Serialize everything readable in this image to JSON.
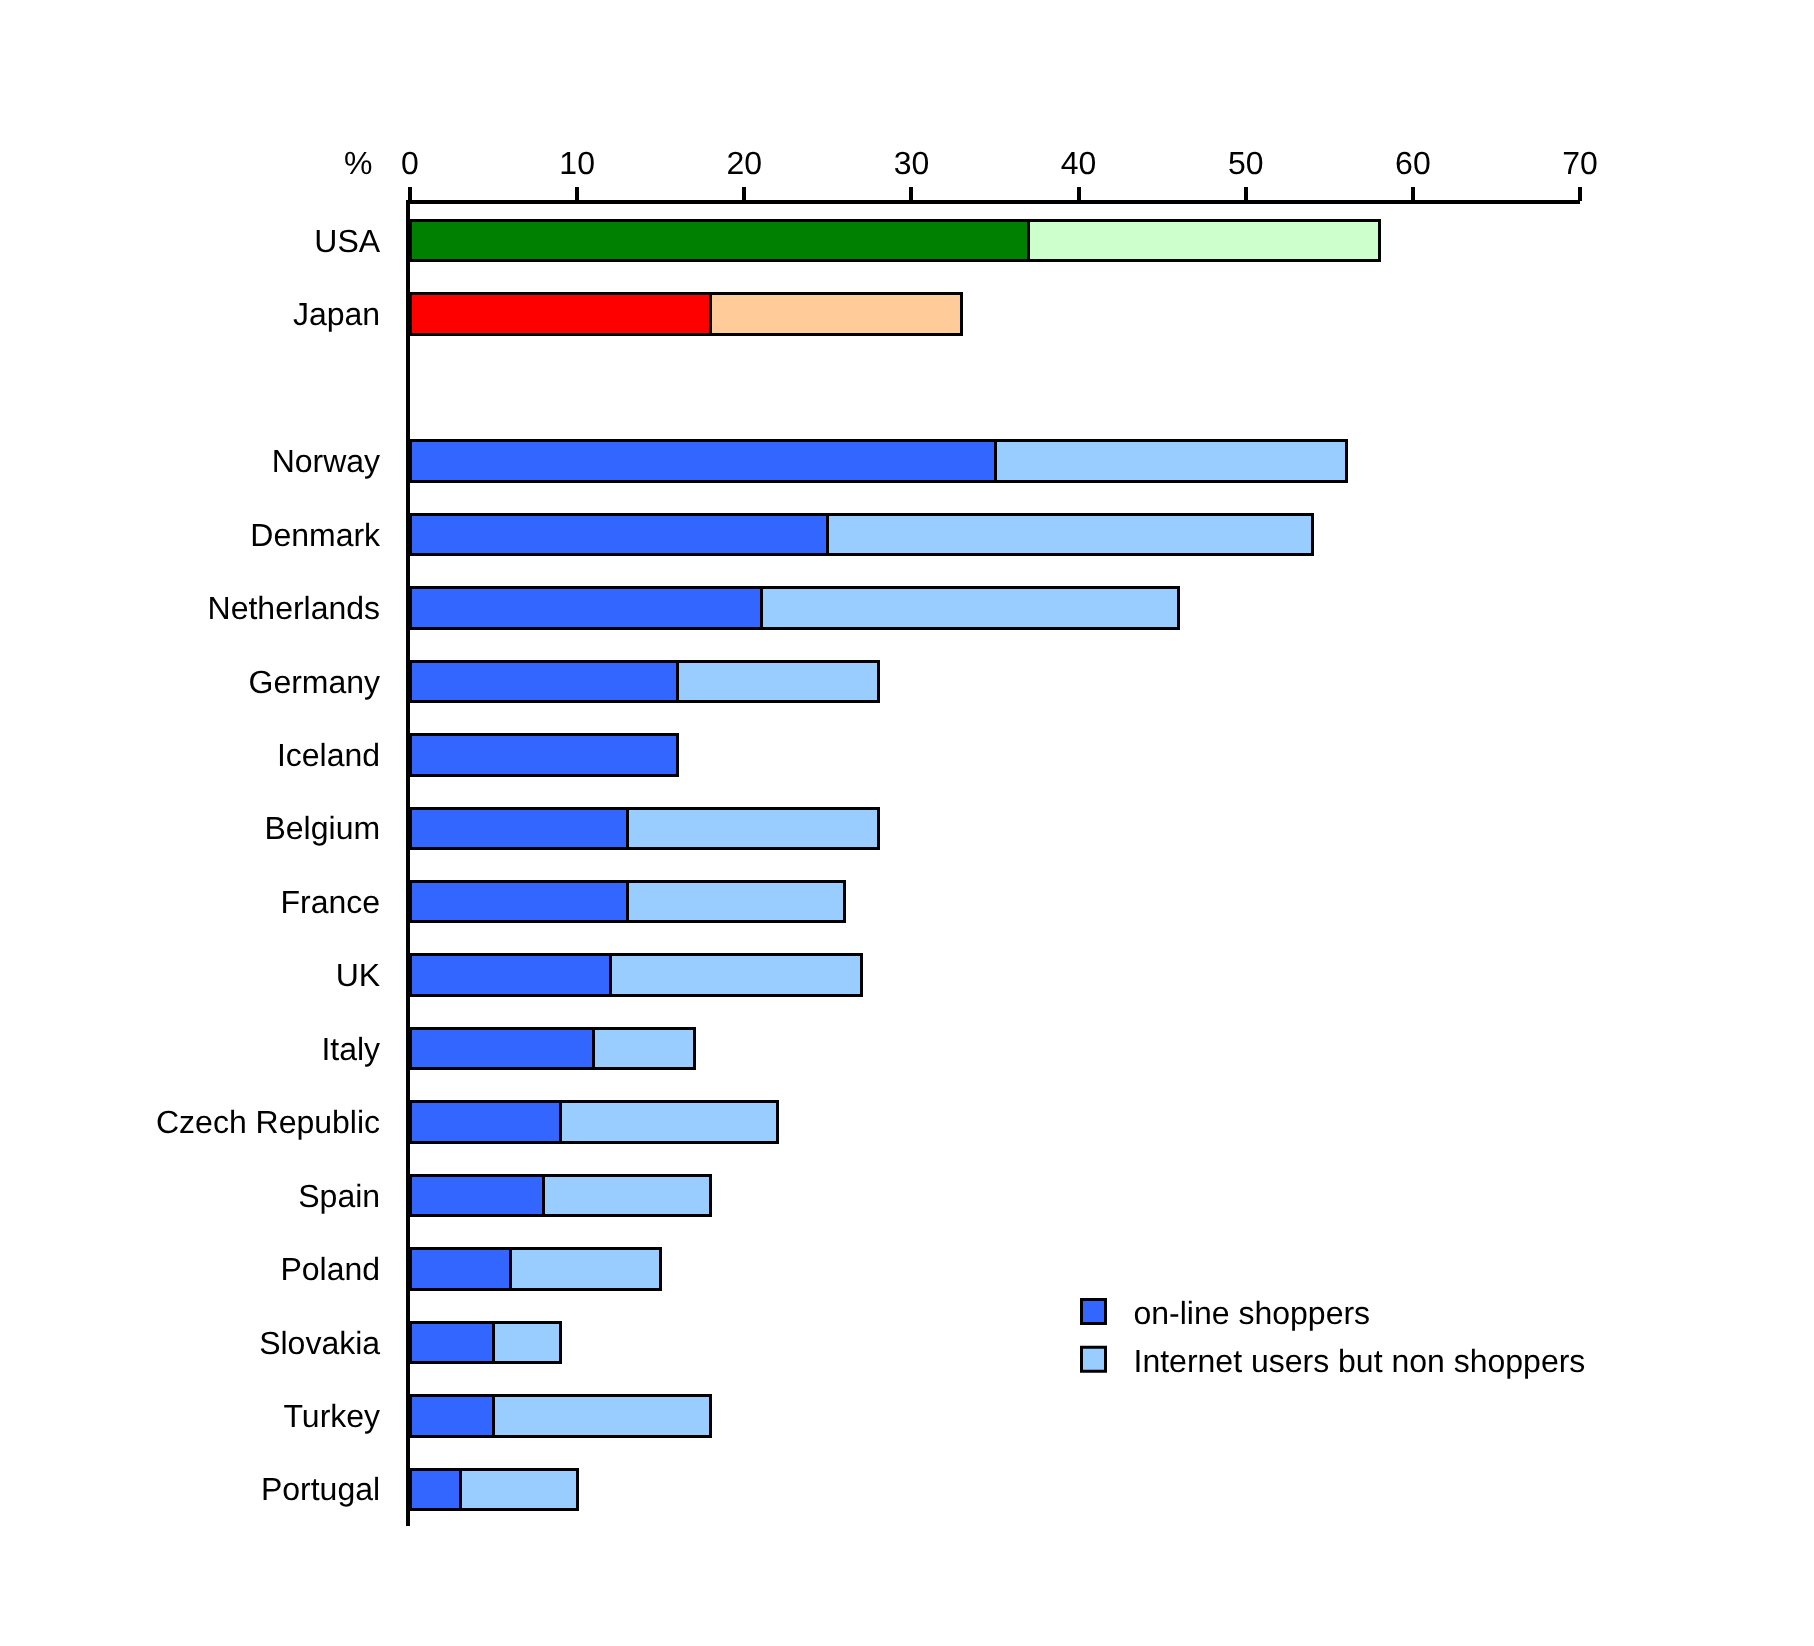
{
  "chart_data": {
    "type": "bar",
    "orientation": "horizontal",
    "stacked": true,
    "xlabel": "%",
    "categories": [
      "USA",
      "Japan",
      null,
      "Norway",
      "Denmark",
      "Netherlands",
      "Germany",
      "Iceland",
      "Belgium",
      "France",
      "UK",
      "Italy",
      "Czech Republic",
      "Spain",
      "Poland",
      "Slovakia",
      "Turkey",
      "Portugal"
    ],
    "series": [
      {
        "name": "on-line shoppers",
        "color": "#3366ff",
        "colors": [
          "#008000",
          "#ff0000",
          "#3366ff",
          "#3366ff",
          "#3366ff",
          "#3366ff",
          "#3366ff",
          "#3366ff",
          "#3366ff",
          "#3366ff",
          "#3366ff",
          "#3366ff",
          "#3366ff",
          "#3366ff",
          "#3366ff",
          "#3366ff",
          "#3366ff",
          "#3366ff"
        ],
        "values": [
          37,
          18,
          null,
          35,
          25,
          21,
          16,
          16,
          13,
          13,
          12,
          11,
          9,
          8,
          6,
          5,
          5,
          3
        ]
      },
      {
        "name": "Internet users but non shoppers",
        "color": "#99ccff",
        "colors": [
          "#ccffcc",
          "#ffcc99",
          "#99ccff",
          "#99ccff",
          "#99ccff",
          "#99ccff",
          "#99ccff",
          "#99ccff",
          "#99ccff",
          "#99ccff",
          "#99ccff",
          "#99ccff",
          "#99ccff",
          "#99ccff",
          "#99ccff",
          "#99ccff",
          "#99ccff",
          "#99ccff"
        ],
        "values": [
          21,
          15,
          null,
          21,
          29,
          25,
          12,
          null,
          15,
          13,
          15,
          6,
          13,
          10,
          9,
          4,
          13,
          7
        ]
      }
    ],
    "xlim": [
      0,
      70
    ],
    "xticks": [
      0,
      10,
      20,
      30,
      40,
      50,
      60,
      70
    ],
    "legend": "bottom right"
  }
}
